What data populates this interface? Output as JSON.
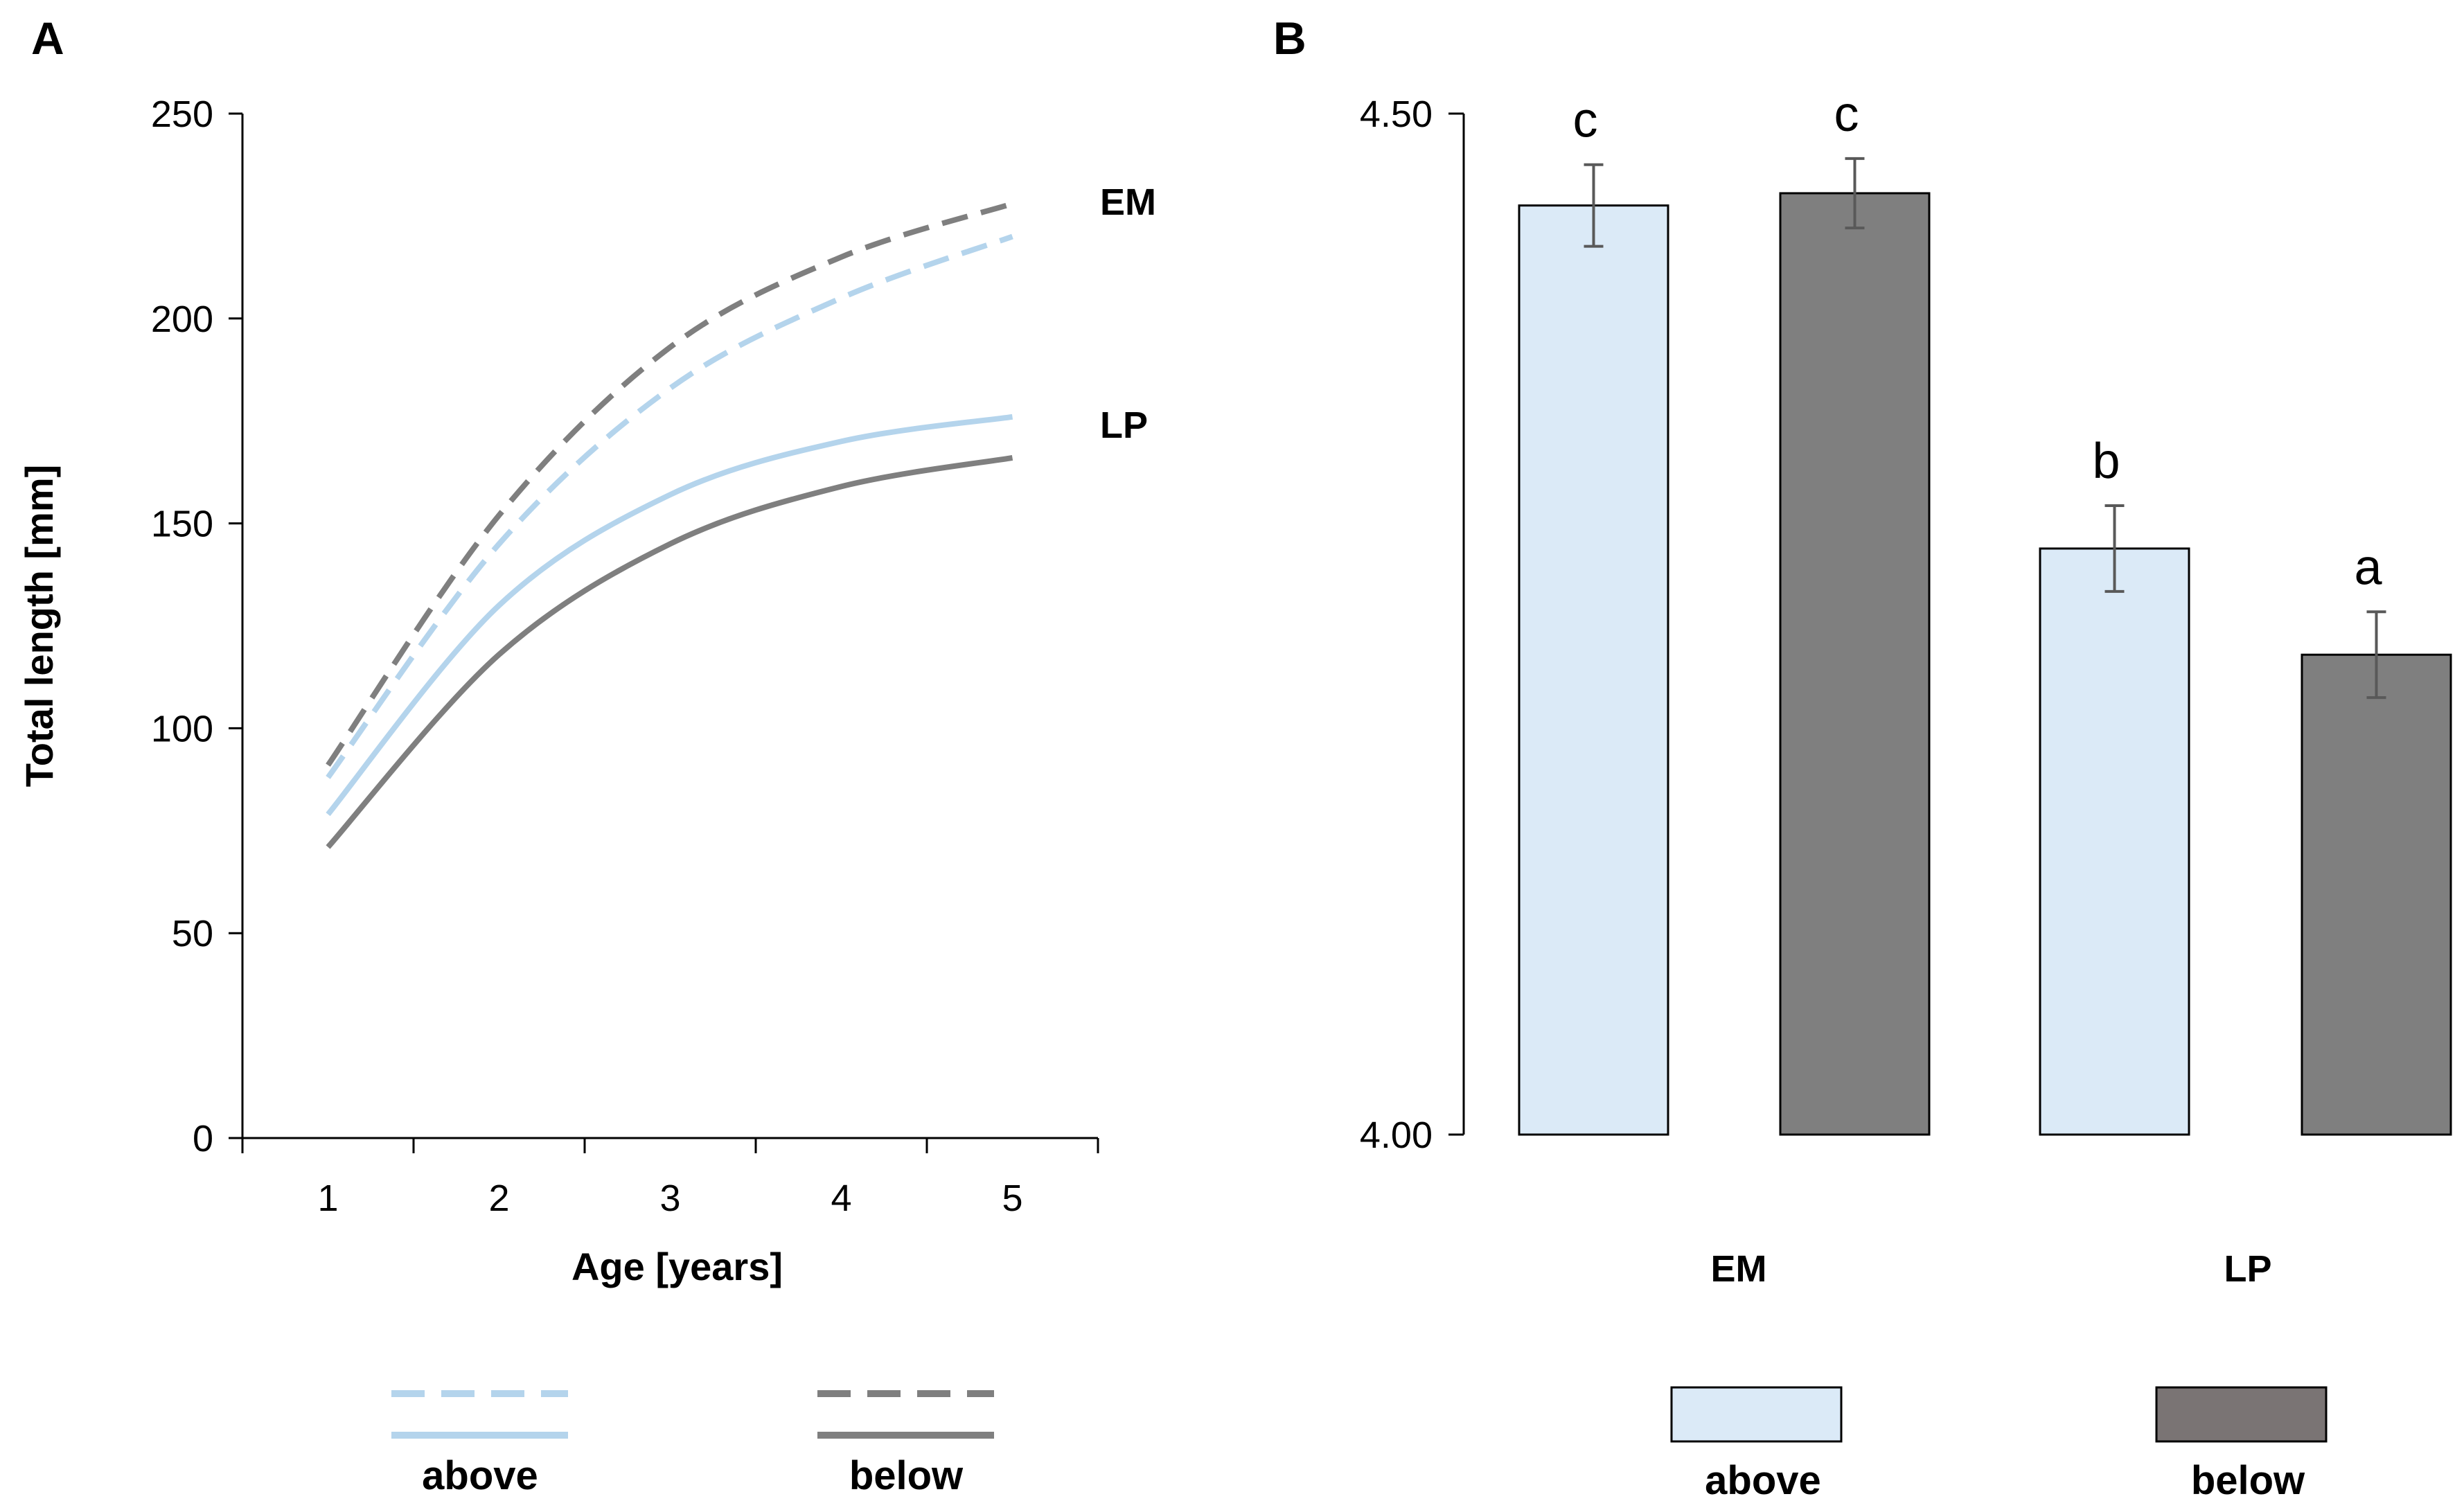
{
  "chart_data": [
    {
      "panel": "A",
      "type": "line",
      "xlabel": "Age [years]",
      "ylabel": "Total length [mm]",
      "x": [
        1,
        2,
        3,
        4,
        5
      ],
      "x_tick_labels": [
        "1",
        "2",
        "3",
        "4",
        "5"
      ],
      "xlim": [
        0.5,
        5.5
      ],
      "ylim": [
        0,
        250
      ],
      "y_tick_labels": [
        "0",
        "50",
        "100",
        "150",
        "200",
        "250"
      ],
      "y_ticks": [
        0,
        50,
        100,
        150,
        200,
        250
      ],
      "grid": false,
      "series": [
        {
          "name": "EM above",
          "style": "dashed",
          "color": "#b4d4ec",
          "values": [
            88,
            145,
            183,
            205,
            220
          ]
        },
        {
          "name": "EM below",
          "style": "dashed",
          "color": "#7f7f7f",
          "values": [
            91,
            152,
            193,
            215,
            228
          ]
        },
        {
          "name": "LP above",
          "style": "solid",
          "color": "#b4d4ec",
          "values": [
            79,
            130,
            157,
            170,
            176
          ]
        },
        {
          "name": "LP below",
          "style": "solid",
          "color": "#7f7f7f",
          "values": [
            71,
            118,
            145,
            159,
            166
          ]
        }
      ],
      "annotations": [
        {
          "text": "EM",
          "series_group": "dashed"
        },
        {
          "text": "LP",
          "series_group": "solid"
        }
      ],
      "legend": {
        "placement": "bottom",
        "entries": [
          {
            "label": "above",
            "color": "#b4d4ec"
          },
          {
            "label": "below",
            "color": "#7f7f7f"
          }
        ]
      }
    },
    {
      "panel": "B",
      "type": "bar",
      "categories": [
        "EM",
        "LP"
      ],
      "ylim": [
        4.0,
        4.5
      ],
      "y_tick_labels": [
        "4.00",
        "4.50"
      ],
      "y_ticks": [
        4.0,
        4.5
      ],
      "grid": false,
      "series": [
        {
          "name": "above",
          "color": "#dbeaf7",
          "values": [
            4.455,
            4.287
          ],
          "errors": [
            0.02,
            0.021
          ],
          "letters": [
            "c",
            "b"
          ]
        },
        {
          "name": "below",
          "color": "#7f7f7f",
          "values": [
            4.461,
            4.235
          ],
          "errors": [
            0.017,
            0.021
          ],
          "letters": [
            "c",
            "a"
          ]
        }
      ],
      "legend": {
        "placement": "bottom",
        "entries": [
          {
            "label": "above",
            "color": "#dbeaf7"
          },
          {
            "label": "below",
            "color": "#7a7474"
          }
        ]
      }
    }
  ]
}
